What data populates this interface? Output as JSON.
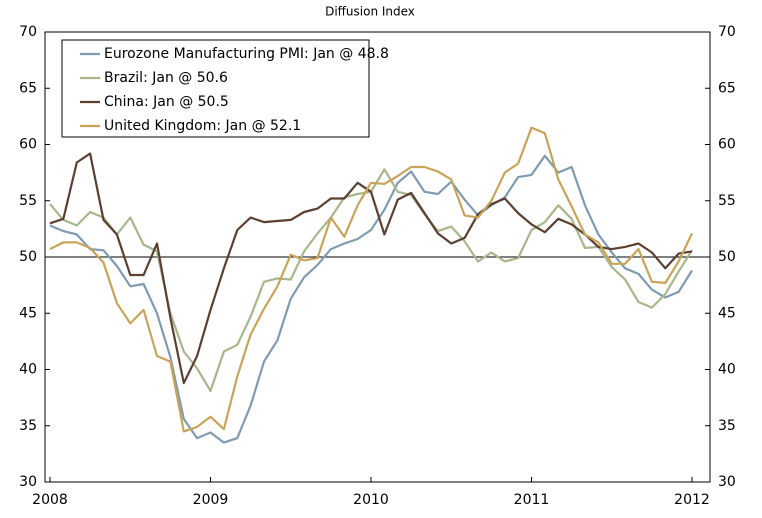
{
  "chart_data": {
    "type": "line",
    "subtitle": "Diffusion Index",
    "categories": [
      "2008",
      null,
      null,
      null,
      null,
      null,
      null,
      null,
      null,
      null,
      null,
      null,
      "2009",
      null,
      null,
      null,
      null,
      null,
      null,
      null,
      null,
      null,
      null,
      null,
      "2010",
      null,
      null,
      null,
      null,
      null,
      null,
      null,
      null,
      null,
      null,
      null,
      "2011",
      null,
      null,
      null,
      null,
      null,
      null,
      null,
      null,
      null,
      null,
      null,
      "2012"
    ],
    "series": [
      {
        "name": "Eurozone Manufacturing PMI: Jan @ 48.8",
        "color": "#7f9bb0",
        "values": [
          52.8,
          52.3,
          52.0,
          50.7,
          50.6,
          49.2,
          47.4,
          47.6,
          45.0,
          41.1,
          35.6,
          33.9,
          34.4,
          33.5,
          33.9,
          36.8,
          40.7,
          42.6,
          46.3,
          48.2,
          49.3,
          50.7,
          51.2,
          51.6,
          52.4,
          54.2,
          56.6,
          57.6,
          55.8,
          55.6,
          56.7,
          55.1,
          53.7,
          54.6,
          55.3,
          57.1,
          57.3,
          59.0,
          57.5,
          58.0,
          54.6,
          52.0,
          50.4,
          49.0,
          48.5,
          47.1,
          46.4,
          46.9,
          48.8
        ]
      },
      {
        "name": "Brazil: Jan @ 50.6",
        "color": "#a8b68c",
        "values": [
          54.7,
          53.3,
          52.8,
          54.0,
          53.5,
          52.0,
          53.5,
          51.1,
          50.5,
          45.0,
          41.6,
          40.1,
          38.1,
          41.6,
          42.2,
          44.7,
          47.8,
          48.1,
          48.0,
          50.5,
          52.1,
          53.5,
          55.3,
          55.6,
          55.8,
          57.8,
          55.8,
          55.5,
          53.8,
          52.3,
          52.7,
          51.4,
          49.6,
          50.4,
          49.6,
          49.9,
          52.4,
          53.1,
          54.6,
          53.4,
          50.8,
          50.9,
          49.1,
          48.0,
          46.0,
          45.5,
          46.7,
          48.7,
          50.6
        ]
      },
      {
        "name": "China: Jan @ 50.5",
        "color": "#5a4032",
        "values": [
          53.0,
          53.4,
          58.4,
          59.2,
          53.3,
          52.0,
          48.4,
          48.4,
          51.2,
          44.6,
          38.8,
          41.2,
          45.3,
          49.0,
          52.4,
          53.5,
          53.1,
          53.2,
          53.3,
          54.0,
          54.3,
          55.2,
          55.2,
          56.6,
          55.8,
          52.0,
          55.1,
          55.7,
          53.9,
          52.1,
          51.2,
          51.7,
          53.8,
          54.7,
          55.2,
          53.9,
          52.9,
          52.2,
          53.4,
          52.9,
          52.0,
          50.9,
          50.7,
          50.9,
          51.2,
          50.4,
          49.0,
          50.3,
          50.5
        ]
      },
      {
        "name": "United Kingdom: Jan @ 52.1",
        "color": "#c8a45a",
        "values": [
          50.7,
          51.3,
          51.3,
          50.8,
          49.5,
          45.9,
          44.1,
          45.3,
          41.2,
          40.7,
          34.5,
          34.9,
          35.8,
          34.7,
          39.4,
          43.1,
          45.4,
          47.4,
          50.2,
          49.7,
          49.9,
          53.5,
          51.8,
          54.6,
          56.6,
          56.5,
          57.2,
          58.0,
          58.0,
          57.6,
          56.9,
          53.7,
          53.5,
          55.0,
          57.5,
          58.3,
          61.5,
          61.0,
          56.9,
          54.5,
          52.0,
          51.3,
          49.4,
          49.4,
          50.7,
          47.8,
          47.7,
          49.6,
          52.1
        ]
      }
    ],
    "ylim": [
      30,
      70
    ],
    "yticks": [
      30,
      35,
      40,
      45,
      50,
      55,
      60,
      65,
      70
    ],
    "y2lim": [
      30,
      70
    ],
    "y2ticks": [
      30,
      35,
      40,
      45,
      50,
      55,
      60,
      65,
      70
    ],
    "reference_line": 50,
    "grid": false,
    "legend": "upper left"
  }
}
